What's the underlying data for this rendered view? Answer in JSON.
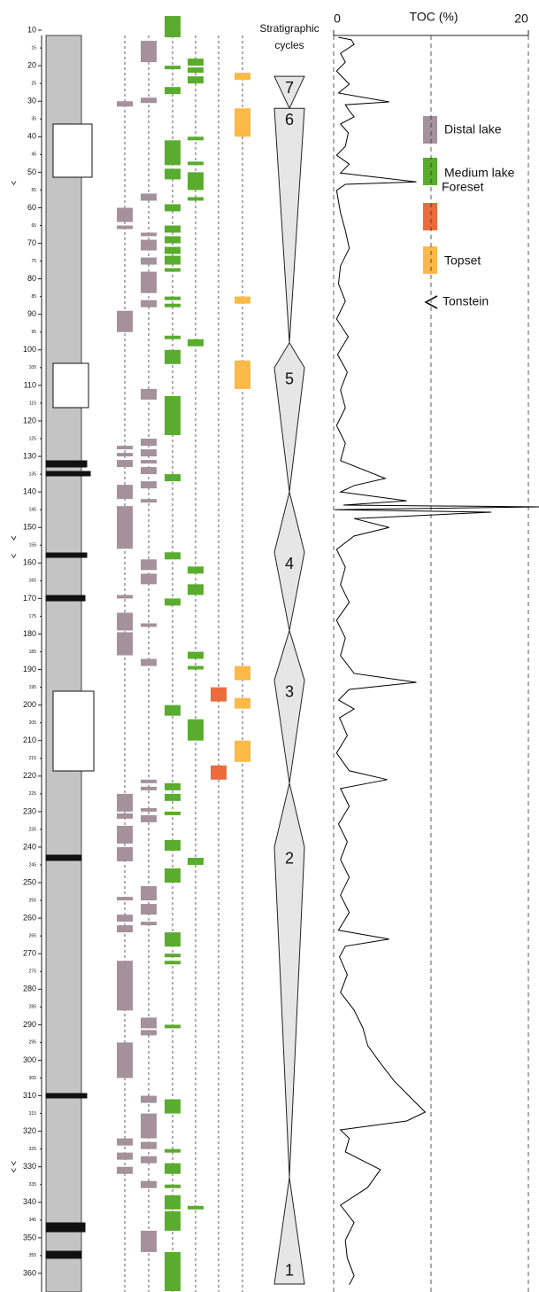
{
  "chart_data": {
    "type": "log",
    "title": "TOC (%)",
    "ylim": [
      3,
      365
    ],
    "yticks": [
      10,
      20,
      30,
      40,
      50,
      60,
      70,
      80,
      90,
      100,
      110,
      120,
      130,
      140,
      150,
      160,
      170,
      180,
      190,
      200,
      210,
      220,
      230,
      240,
      250,
      260,
      270,
      280,
      290,
      300,
      310,
      320,
      330,
      340,
      350,
      360
    ],
    "yticks_minor": [
      15,
      25,
      35,
      45,
      55,
      65,
      75,
      85,
      95,
      105,
      115,
      125,
      135,
      145,
      155,
      165,
      175,
      185,
      195,
      205,
      215,
      225,
      235,
      245,
      255,
      265,
      275,
      285,
      295,
      305,
      315,
      325,
      335,
      345,
      355
    ],
    "toc": {
      "xlim": [
        0,
        20
      ],
      "xticks": [
        0,
        20
      ],
      "xgrid": [
        0,
        10,
        20
      ],
      "color": "#000000",
      "depth": [
        12.0,
        12.7,
        14.0,
        16.5,
        19.0,
        21.5,
        25.2,
        27.7,
        30.2,
        31.0,
        32.7,
        34.4,
        36.4,
        38.9,
        42.7,
        45.2,
        47.7,
        50.2,
        52.7,
        53.4,
        55.1,
        61.4,
        66.4,
        71.4,
        76.4,
        81.4,
        86.3,
        91.3,
        96.3,
        101.3,
        106.3,
        111.3,
        116.3,
        121.3,
        126.3,
        131.2,
        136.2,
        138.2,
        140.0,
        142.5,
        143.7,
        144.2,
        145.0,
        145.7,
        147.5,
        150.0,
        152.4,
        156.2,
        161.2,
        166.1,
        171.1,
        176.1,
        181.1,
        186.1,
        191.1,
        193.6,
        195.6,
        198.6,
        201.1,
        203.6,
        208.6,
        213.5,
        218.5,
        221.0,
        223.5,
        228.5,
        233.5,
        238.5,
        243.5,
        248.5,
        253.5,
        258.4,
        263.4,
        265.9,
        267.9,
        270.9,
        275.9,
        280.9,
        285.9,
        290.9,
        295.9,
        300.8,
        305.8,
        310.8,
        314.6,
        317.1,
        319.6,
        322.0,
        325.8,
        330.8,
        335.8,
        340.8,
        345.7,
        350.7,
        355.7,
        360.7,
        363.2
      ],
      "values": [
        0.5,
        1.8,
        2.1,
        0.7,
        1.2,
        0.3,
        1.6,
        0.5,
        5.7,
        1.2,
        1.6,
        2.1,
        0.7,
        1.5,
        1.2,
        0.3,
        1.6,
        0.7,
        8.5,
        1.2,
        0.3,
        0.7,
        1.2,
        1.6,
        0.7,
        0.5,
        1.2,
        0.3,
        1.5,
        0.4,
        1.4,
        0.7,
        1.2,
        0.3,
        1.2,
        0.7,
        5.3,
        2.1,
        0.7,
        7.5,
        1.0,
        21.1,
        0.1,
        16.2,
        2.1,
        5.7,
        2.1,
        0.3,
        1.2,
        0.7,
        1.6,
        0.3,
        1.2,
        0.7,
        2.1,
        8.5,
        1.6,
        0.5,
        2.1,
        0.6,
        1.4,
        0.3,
        1.6,
        5.5,
        0.7,
        1.6,
        0.5,
        1.4,
        0.7,
        1.6,
        0.7,
        1.6,
        0.5,
        5.7,
        1.2,
        0.6,
        1.4,
        0.7,
        2.1,
        3.0,
        3.5,
        4.8,
        6.2,
        8.0,
        9.4,
        7.5,
        0.7,
        1.6,
        1.2,
        4.8,
        3.5,
        0.7,
        2.1,
        1.2,
        1.4,
        2.1,
        1.6
      ]
    },
    "facies": [
      {
        "name": "Distal lake",
        "color": "#a4919c",
        "columns": [
          [
            [
              30,
              31.5
            ],
            [
              60,
              64
            ],
            [
              65,
              66
            ],
            [
              89,
              95
            ],
            [
              127,
              128
            ],
            [
              129,
              130
            ],
            [
              131,
              133
            ],
            [
              138,
              142
            ],
            [
              144,
              156
            ],
            [
              169,
              170
            ],
            [
              174,
              179
            ],
            [
              179.5,
              186
            ],
            [
              225,
              230
            ],
            [
              230.5,
              232
            ],
            [
              234,
              239
            ],
            [
              240,
              244
            ],
            [
              254,
              255
            ],
            [
              259,
              261
            ],
            [
              262,
              264
            ],
            [
              272,
              286
            ],
            [
              295,
              305
            ],
            [
              322,
              324
            ],
            [
              326,
              328
            ],
            [
              330,
              332
            ]
          ],
          [
            [
              13,
              19
            ],
            [
              29,
              30.5
            ],
            [
              56,
              58
            ],
            [
              67,
              68
            ],
            [
              69,
              72
            ],
            [
              74,
              76
            ],
            [
              78,
              84
            ],
            [
              86,
              88
            ],
            [
              111,
              114
            ],
            [
              125,
              127
            ],
            [
              128,
              130
            ],
            [
              131,
              132
            ],
            [
              133,
              135
            ],
            [
              137,
              139
            ],
            [
              142,
              143
            ],
            [
              159,
              162
            ],
            [
              163,
              166
            ],
            [
              177,
              178
            ],
            [
              187,
              189
            ],
            [
              221,
              222
            ],
            [
              223,
              224
            ],
            [
              229,
              230
            ],
            [
              231,
              233
            ],
            [
              251,
              255
            ],
            [
              256,
              259
            ],
            [
              261,
              262
            ],
            [
              288,
              291
            ],
            [
              291.5,
              293
            ],
            [
              310,
              312
            ],
            [
              315,
              322
            ],
            [
              323,
              325
            ],
            [
              327,
              329
            ],
            [
              334,
              336
            ],
            [
              348,
              354
            ]
          ]
        ]
      },
      {
        "name": "Medium lake",
        "color": "#5aac2e",
        "columns": [
          [
            [
              6,
              12
            ],
            [
              20,
              21
            ],
            [
              26,
              28
            ],
            [
              41,
              48
            ],
            [
              49,
              52
            ],
            [
              59,
              61
            ],
            [
              65,
              67
            ],
            [
              68,
              70
            ],
            [
              71,
              73
            ],
            [
              73.5,
              76
            ],
            [
              77,
              78
            ],
            [
              85,
              86
            ],
            [
              87,
              88
            ],
            [
              96,
              97
            ],
            [
              100,
              104
            ],
            [
              113,
              124
            ],
            [
              135,
              137
            ],
            [
              157,
              159
            ],
            [
              170,
              172
            ],
            [
              200,
              203
            ],
            [
              222,
              224
            ],
            [
              225,
              227
            ],
            [
              230,
              231
            ],
            [
              238,
              241
            ],
            [
              246,
              250
            ],
            [
              264,
              268
            ],
            [
              270,
              271
            ],
            [
              272,
              273
            ],
            [
              290,
              291
            ],
            [
              311,
              315
            ],
            [
              325,
              326
            ],
            [
              329,
              332
            ],
            [
              335,
              336
            ],
            [
              338,
              342
            ],
            [
              342.5,
              348
            ],
            [
              354,
              365
            ]
          ],
          [
            [
              18,
              20
            ],
            [
              20.5,
              22
            ],
            [
              23,
              25
            ],
            [
              40,
              41
            ],
            [
              47,
              48
            ],
            [
              50,
              55
            ],
            [
              57,
              58
            ],
            [
              97,
              99
            ],
            [
              161,
              163
            ],
            [
              166,
              169
            ],
            [
              185,
              187
            ],
            [
              189,
              190
            ],
            [
              204,
              210
            ],
            [
              243,
              245
            ],
            [
              341,
              342
            ]
          ]
        ]
      },
      {
        "name": "Foreset",
        "color": "#ed6a3d",
        "columns": [
          [
            [
              195,
              199
            ],
            [
              217,
              221
            ]
          ]
        ]
      },
      {
        "name": "Topset",
        "color": "#fbb947",
        "columns": [
          [
            [
              22,
              24
            ],
            [
              32,
              40
            ],
            [
              85,
              87
            ],
            [
              103,
              111
            ],
            [
              189,
              193
            ],
            [
              198,
              201
            ],
            [
              210,
              216
            ]
          ]
        ]
      }
    ],
    "cycles_title": [
      "Stratigraphic",
      "cycles"
    ],
    "cycles": [
      {
        "label": "7",
        "top": 23,
        "max": 23,
        "bottom": 32
      },
      {
        "label": "6",
        "top": 32,
        "max": 32,
        "bottom": 98
      },
      {
        "label": "5",
        "top": 98,
        "max": 105,
        "bottom": 140
      },
      {
        "label": "4",
        "top": 140,
        "max": 157,
        "bottom": 179
      },
      {
        "label": "3",
        "top": 179,
        "max": 193,
        "bottom": 222
      },
      {
        "label": "2",
        "top": 222,
        "max": 240,
        "bottom": 333
      },
      {
        "label": "1",
        "top": 333,
        "max": 363,
        "bottom": 363
      }
    ],
    "tonstein": {
      "name": "Tonstein",
      "depths": [
        53,
        153,
        158,
        329,
        331
      ]
    }
  }
}
